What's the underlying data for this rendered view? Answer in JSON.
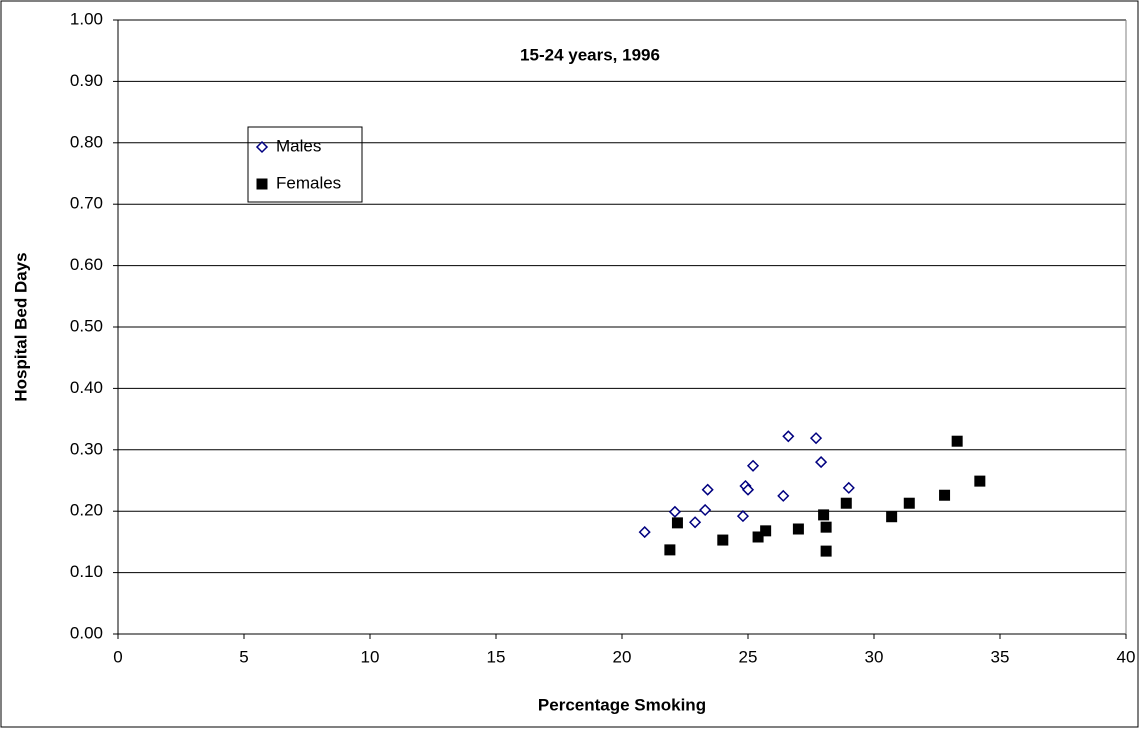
{
  "chart_data": {
    "type": "scatter",
    "title": "15-24 years, 1996",
    "xlabel": "Percentage Smoking",
    "ylabel": "Hospital Bed Days",
    "xlim": [
      0,
      40
    ],
    "xticks": [
      0,
      5,
      10,
      15,
      20,
      25,
      30,
      35,
      40
    ],
    "ylim": [
      0,
      1
    ],
    "yticks": [
      {
        "value": 0,
        "label": "0.00"
      },
      {
        "value": 0.1,
        "label": "0.10"
      },
      {
        "value": 0.2,
        "label": "0.20"
      },
      {
        "value": 0.3,
        "label": "0.30"
      },
      {
        "value": 0.4,
        "label": "0.40"
      },
      {
        "value": 0.5,
        "label": "0.50"
      },
      {
        "value": 0.6,
        "label": "0.60"
      },
      {
        "value": 0.7,
        "label": "0.70"
      },
      {
        "value": 0.8,
        "label": "0.80"
      },
      {
        "value": 0.9,
        "label": "0.90"
      },
      {
        "value": 1,
        "label": "1.00"
      }
    ],
    "grid": true,
    "series": [
      {
        "name": "Males",
        "color": "#000080",
        "marker": "diamond",
        "x": [
          20.9,
          22.1,
          22.9,
          23.3,
          23.4,
          24.8,
          24.9,
          25.0,
          25.2,
          26.4,
          26.6,
          27.7,
          27.9,
          29.0
        ],
        "values": [
          0.166,
          0.199,
          0.182,
          0.202,
          0.235,
          0.192,
          0.241,
          0.235,
          0.274,
          0.225,
          0.322,
          0.319,
          0.28,
          0.238
        ]
      },
      {
        "name": "Females",
        "color": "#000000",
        "marker": "square",
        "x": [
          21.9,
          22.2,
          24.0,
          25.4,
          25.7,
          27.0,
          28.0,
          28.1,
          28.1,
          28.9,
          30.7,
          31.4,
          32.8,
          33.3,
          34.2
        ],
        "values": [
          0.137,
          0.181,
          0.153,
          0.158,
          0.168,
          0.171,
          0.194,
          0.174,
          0.135,
          0.213,
          0.191,
          0.213,
          0.226,
          0.314,
          0.249
        ]
      }
    ]
  }
}
